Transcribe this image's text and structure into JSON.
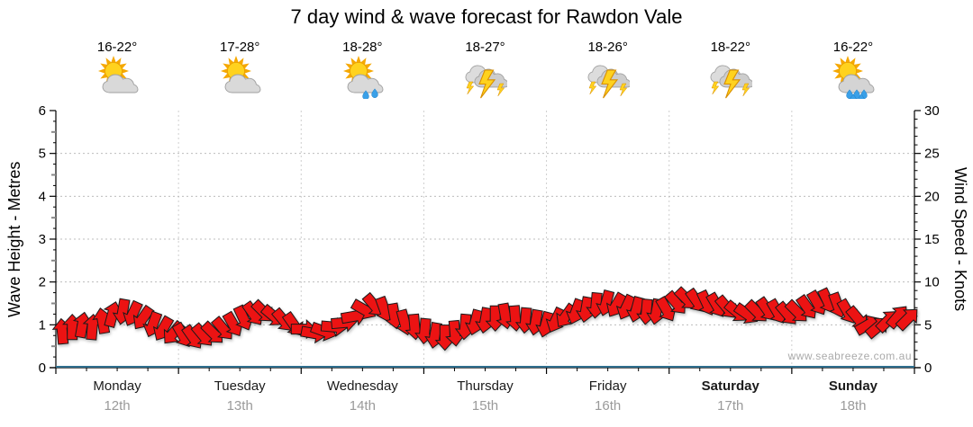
{
  "title": "7 day wind & wave forecast for Rawdon Vale",
  "watermark": "www.seabreeze.com.au",
  "axes": {
    "left_label": "Wave Height - Metres",
    "right_label": "Wind Speed - Knots",
    "left_ticks": [
      0,
      1,
      2,
      3,
      4,
      5,
      6
    ],
    "right_ticks": [
      0,
      5,
      10,
      15,
      20,
      25,
      30
    ]
  },
  "days": [
    {
      "name": "Monday",
      "date": "12th",
      "temp": "16-22°",
      "icon": "partly-cloudy",
      "weekend": false
    },
    {
      "name": "Tuesday",
      "date": "13th",
      "temp": "17-28°",
      "icon": "partly-cloudy",
      "weekend": false
    },
    {
      "name": "Wednesday",
      "date": "14th",
      "temp": "18-28°",
      "icon": "sun-showers",
      "weekend": false
    },
    {
      "name": "Thursday",
      "date": "15th",
      "temp": "18-27°",
      "icon": "storm",
      "weekend": false
    },
    {
      "name": "Friday",
      "date": "16th",
      "temp": "18-26°",
      "icon": "storm",
      "weekend": false
    },
    {
      "name": "Saturday",
      "date": "17th",
      "temp": "18-22°",
      "icon": "storm",
      "weekend": true
    },
    {
      "name": "Sunday",
      "date": "18th",
      "temp": "16-22°",
      "icon": "sun-showers-heavy",
      "weekend": true
    }
  ],
  "chart_data": {
    "type": "scatter",
    "title": "7 day wind & wave forecast for Rawdon Vale",
    "categories": [
      "Monday 12th",
      "Tuesday 13th",
      "Wednesday 14th",
      "Thursday 15th",
      "Friday 16th",
      "Saturday 17th",
      "Sunday 18th"
    ],
    "left_axis": {
      "label": "Wave Height - Metres",
      "range": [
        0,
        6
      ],
      "major_step": 1
    },
    "right_axis": {
      "label": "Wind Speed - Knots",
      "range": [
        0,
        30
      ],
      "major_step": 5
    },
    "grid": true,
    "legend": "none",
    "wave_height_series": {
      "type": "line",
      "color": "#2e6e8e",
      "constant_value_m": 0
    },
    "wind_series": {
      "marker": "direction-arrow",
      "color": "#ec1313",
      "outline": "#1a1a1a",
      "points_per_day": 12,
      "knots": [
        4.25,
        4.75,
        5,
        4.75,
        5.5,
        6.25,
        6.5,
        6.25,
        5.75,
        5,
        4.5,
        4,
        3.75,
        3.5,
        3.75,
        4,
        4.5,
        5,
        5.75,
        6.25,
        6.5,
        6,
        5.5,
        5,
        4.5,
        4,
        4.25,
        4.75,
        5.25,
        6,
        6.75,
        7.25,
        6.75,
        6,
        5.25,
        4.75,
        4.25,
        3.75,
        3.5,
        4,
        4.75,
        5.25,
        5.5,
        5.75,
        6,
        5.75,
        5.5,
        5.25,
        5,
        5.5,
        6,
        6.5,
        6.75,
        7.25,
        7.5,
        7.25,
        7,
        6.75,
        6.5,
        6.5,
        6.75,
        7.5,
        8,
        7.75,
        7.5,
        7.25,
        7,
        6.5,
        6.25,
        6.5,
        6.75,
        6.5,
        6.25,
        6.5,
        7,
        7.5,
        7.75,
        7.25,
        6.5,
        5.75,
        5,
        4.75,
        5.5,
        6,
        5.75
      ],
      "direction_deg": [
        355,
        0,
        10,
        5,
        350,
        15,
        190,
        205,
        215,
        200,
        210,
        220,
        150,
        145,
        140,
        135,
        140,
        150,
        155,
        145,
        135,
        130,
        140,
        145,
        90,
        100,
        110,
        95,
        85,
        80,
        120,
        140,
        160,
        170,
        165,
        175,
        185,
        190,
        180,
        175,
        185,
        195,
        190,
        180,
        170,
        175,
        185,
        190,
        195,
        205,
        215,
        200,
        190,
        185,
        195,
        210,
        205,
        195,
        185,
        190,
        150,
        140,
        135,
        145,
        155,
        150,
        140,
        130,
        125,
        135,
        145,
        150,
        140,
        135,
        145,
        150,
        155,
        160,
        150,
        140,
        60,
        50,
        45,
        40,
        45
      ]
    },
    "colors": {
      "arrow_fill": "#ec1313",
      "arrow_outline": "#1a1a1a",
      "zero_wave_line": "#2e6e8e",
      "grid_dotted": "#bdbdbd",
      "day_grid_dotted": "#cfcfcf",
      "date_text": "#9a9a9a",
      "watermark_text": "#aaaaaa"
    }
  }
}
